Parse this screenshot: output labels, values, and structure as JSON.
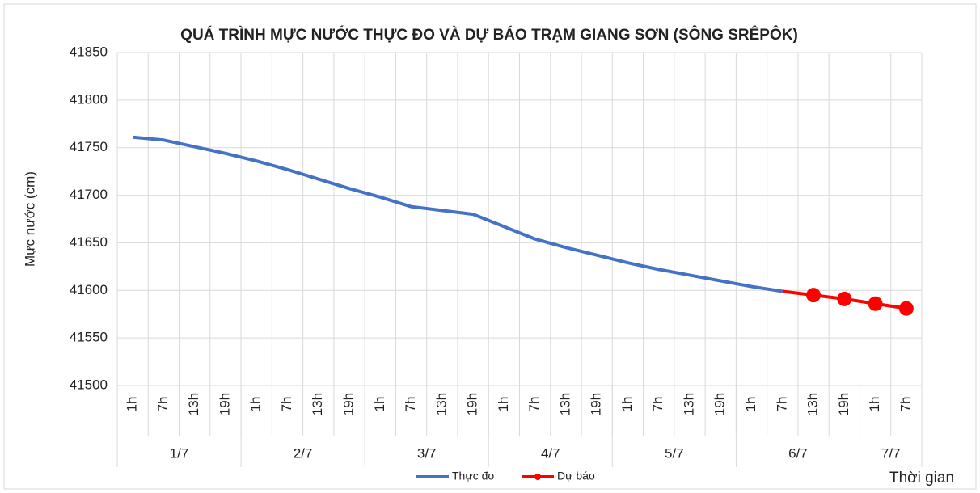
{
  "chart_data": {
    "type": "line",
    "title": "QUÁ TRÌNH MỰC NƯỚC THỰC ĐO VÀ DỰ BÁO TRẠM GIANG SƠN (SÔNG SRÊPÔK)",
    "y_label": "Mực nước (cm)",
    "x_label": "Thời gian",
    "categories": [
      "1h",
      "7h",
      "13h",
      "19h",
      "1h",
      "7h",
      "13h",
      "19h",
      "1h",
      "7h",
      "13h",
      "19h",
      "1h",
      "7h",
      "13h",
      "19h",
      "1h",
      "7h",
      "13h",
      "19h",
      "1h",
      "7h",
      "13h",
      "19h",
      "1h",
      "7h"
    ],
    "groups": [
      {
        "label": "1/7",
        "count": 4
      },
      {
        "label": "2/7",
        "count": 4
      },
      {
        "label": "3/7",
        "count": 4
      },
      {
        "label": "4/7",
        "count": 4
      },
      {
        "label": "5/7",
        "count": 4
      },
      {
        "label": "6/7",
        "count": 4
      },
      {
        "label": "7/7",
        "count": 2
      }
    ],
    "series": [
      {
        "name": "Thực đo",
        "color": "#4472c4",
        "values": [
          41761,
          41758,
          41751,
          41744,
          41736,
          41727,
          41717,
          41707,
          41698,
          41688,
          41684,
          41680,
          41667,
          41654,
          41645,
          41637,
          41629,
          41622,
          41616,
          41610,
          41604,
          41599,
          null,
          null,
          null,
          null
        ]
      },
      {
        "name": "Dự báo",
        "color": "#ff0000",
        "values": [
          null,
          null,
          null,
          null,
          null,
          null,
          null,
          null,
          null,
          null,
          null,
          null,
          null,
          null,
          null,
          null,
          null,
          null,
          null,
          null,
          null,
          41599,
          41595,
          41591,
          41586,
          41581
        ]
      }
    ],
    "ylim": [
      41500,
      41850
    ],
    "yticks": [
      41500,
      41550,
      41600,
      41650,
      41700,
      41750,
      41800,
      41850
    ],
    "grid": true
  }
}
